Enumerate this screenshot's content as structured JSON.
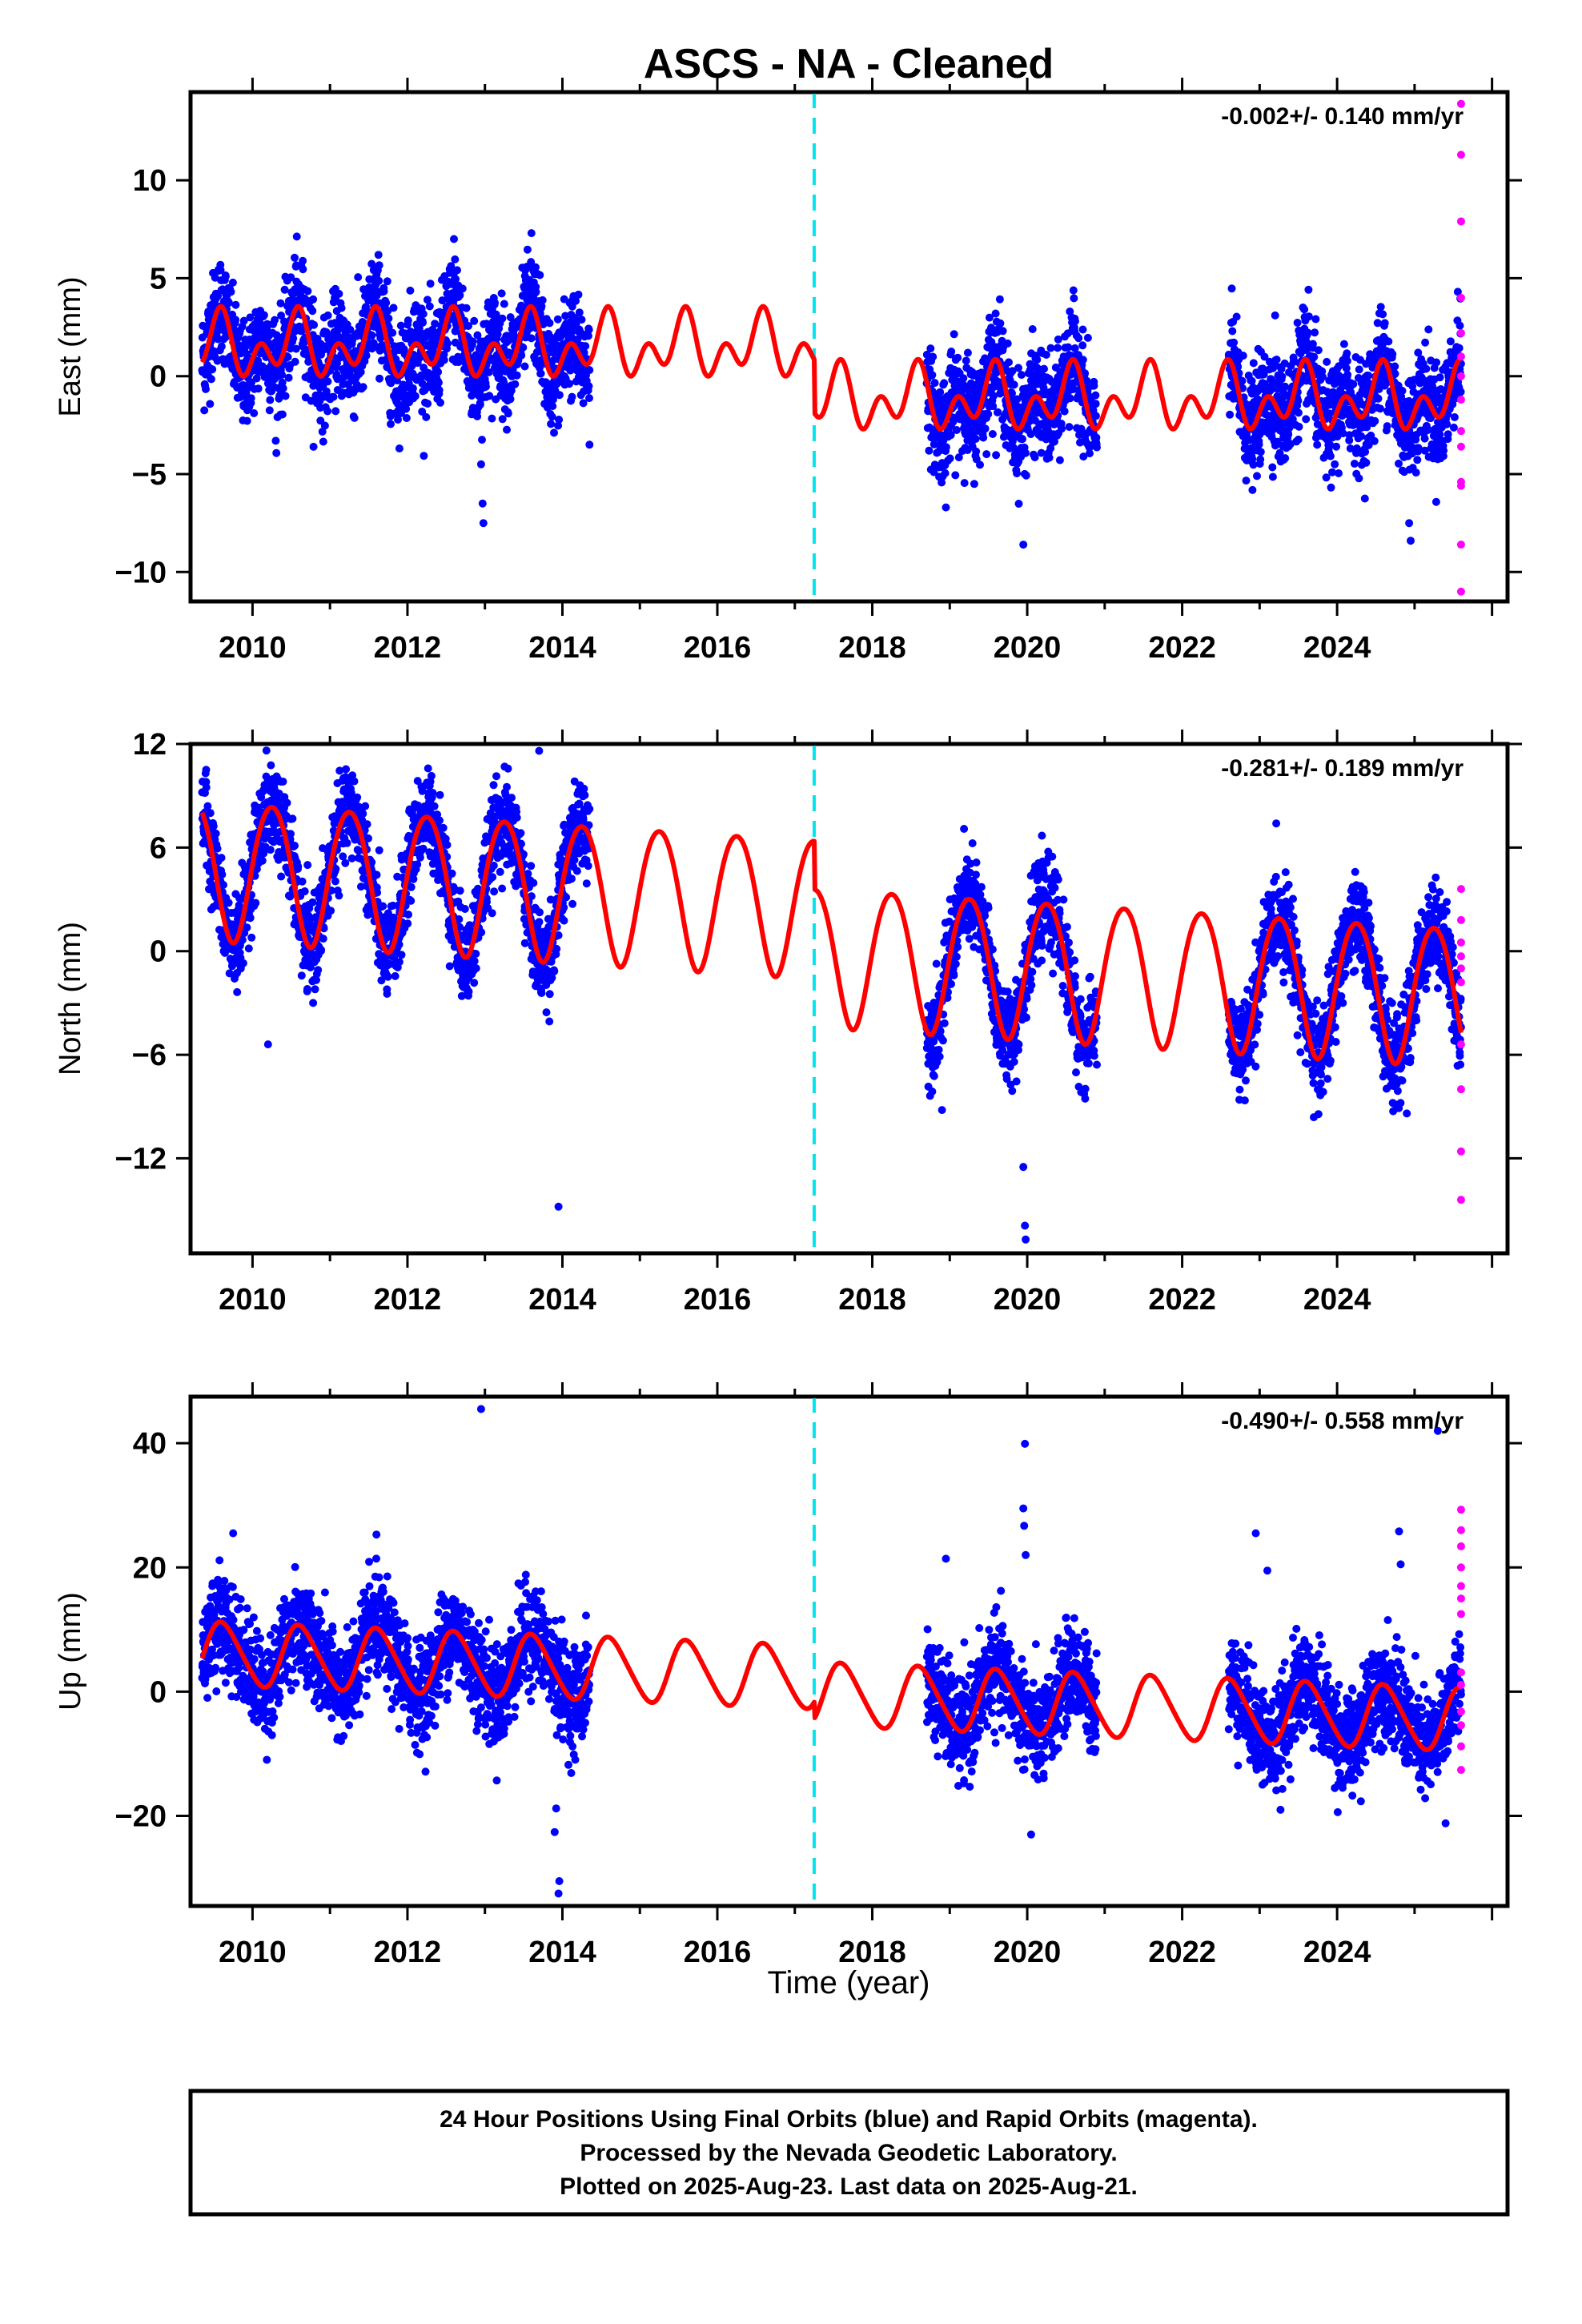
{
  "colors": {
    "final_orbits": "#0000ff",
    "rapid_orbits": "#ff00ff",
    "model": "#ff0000",
    "equipment_change": "#00e5ee",
    "frame": "#000000"
  },
  "chart_data": {
    "type": "scatter",
    "title": "ASCS  - NA - Cleaned",
    "xlabel": "Time (year)",
    "xlim": [
      2009.2,
      2026.2
    ],
    "x_ticks": [
      2010,
      2012,
      2014,
      2016,
      2018,
      2020,
      2022,
      2024
    ],
    "x_tick_labels": [
      "2010",
      "2012",
      "2014",
      "2016",
      "2018",
      "2020",
      "2022",
      "2024"
    ],
    "offset_line_year": 2017.25,
    "data_gap": [
      2014.35,
      2018.7
    ],
    "data_end": 2025.6,
    "panels": [
      {
        "name": "east",
        "ylabel": "East (mm)",
        "ylim": [
          -11.5,
          14.5
        ],
        "y_ticks": [
          -10,
          -5,
          0,
          5,
          10
        ],
        "y_tick_labels": [
          "−10",
          "−5",
          "0",
          "5",
          "10"
        ],
        "rate_label": "-0.002+/- 0.140 mm/yr",
        "model": {
          "segments": [
            {
              "start": 2009.35,
              "end": 2017.25,
              "offset": 1.5
            },
            {
              "start": 2017.25,
              "end": 2025.6,
              "offset": -1.2
            }
          ],
          "annual_amplitude": 1.0,
          "annual_phase": 0.55,
          "semiannual_amplitude": 1.1,
          "semiannual_phase": 0.1
        },
        "scatter_sigma": 1.3,
        "outliers": [
          {
            "x": 2012.6,
            "y": 7.0
          },
          {
            "x": 2013.6,
            "y": 7.3
          },
          {
            "x": 2012.95,
            "y": -4.5
          },
          {
            "x": 2012.97,
            "y": -6.5
          },
          {
            "x": 2012.98,
            "y": -7.5
          },
          {
            "x": 2018.95,
            "y": -6.7
          },
          {
            "x": 2019.95,
            "y": -8.6
          },
          {
            "x": 2020.55,
            "y": 3.3
          },
          {
            "x": 2023.2,
            "y": 3.1
          },
          {
            "x": 2024.93,
            "y": -7.5
          },
          {
            "x": 2024.95,
            "y": -8.4
          },
          {
            "x": 2010.3,
            "y": -3.3
          },
          {
            "x": 2014.35,
            "y": -3.5
          }
        ],
        "rapid_points": [
          {
            "x": 2025.6,
            "y": 13.9
          },
          {
            "x": 2025.6,
            "y": 11.3
          },
          {
            "x": 2025.6,
            "y": 7.9
          },
          {
            "x": 2025.6,
            "y": 4.0
          },
          {
            "x": 2025.6,
            "y": 2.2
          },
          {
            "x": 2025.6,
            "y": 1.0
          },
          {
            "x": 2025.6,
            "y": 0.0
          },
          {
            "x": 2025.6,
            "y": -1.2
          },
          {
            "x": 2025.6,
            "y": -2.8
          },
          {
            "x": 2025.6,
            "y": -3.6
          },
          {
            "x": 2025.6,
            "y": -5.4
          },
          {
            "x": 2025.6,
            "y": -5.6
          },
          {
            "x": 2025.6,
            "y": -8.6
          },
          {
            "x": 2025.6,
            "y": -11.0
          }
        ]
      },
      {
        "name": "north",
        "ylabel": "North (mm)",
        "ylim": [
          -17.5,
          12.0
        ],
        "y_ticks": [
          -12,
          -6,
          0,
          6,
          12
        ],
        "y_tick_labels": [
          "−12",
          "−6",
          "0",
          "6",
          "12"
        ],
        "rate_label": "-0.281+/- 0.189 mm/yr",
        "model": {
          "segments": [
            {
              "start": 2009.35,
              "end": 2017.25,
              "offset": 2.6
            },
            {
              "start": 2017.25,
              "end": 2025.6,
              "offset": -0.2
            }
          ],
          "trend": -0.28,
          "trend_ref": 2017.5,
          "annual_amplitude": 4.0,
          "annual_phase": 0.25,
          "semiannual_amplitude": 0.3,
          "semiannual_phase": 0.0
        },
        "scatter_sigma": 1.3,
        "outliers": [
          {
            "x": 2009.4,
            "y": 9.8
          },
          {
            "x": 2013.7,
            "y": 11.6
          },
          {
            "x": 2013.95,
            "y": -14.8
          },
          {
            "x": 2010.2,
            "y": -5.4
          },
          {
            "x": 2019.95,
            "y": -12.5
          },
          {
            "x": 2019.97,
            "y": -15.9
          },
          {
            "x": 2019.98,
            "y": -16.7
          },
          {
            "x": 2018.9,
            "y": -9.2
          },
          {
            "x": 2024.9,
            "y": -9.4
          }
        ],
        "rapid_points": [
          {
            "x": 2025.6,
            "y": 3.6
          },
          {
            "x": 2025.6,
            "y": 1.8
          },
          {
            "x": 2025.6,
            "y": 0.5
          },
          {
            "x": 2025.6,
            "y": -0.3
          },
          {
            "x": 2025.6,
            "y": -1.0
          },
          {
            "x": 2025.6,
            "y": -1.8
          },
          {
            "x": 2025.6,
            "y": -5.4
          },
          {
            "x": 2025.6,
            "y": -8.0
          },
          {
            "x": 2025.6,
            "y": -11.6
          },
          {
            "x": 2025.6,
            "y": -14.4
          }
        ]
      },
      {
        "name": "up",
        "ylabel": "Up (mm)",
        "ylim": [
          -34.5,
          47.5
        ],
        "y_ticks": [
          -20,
          0,
          20,
          40
        ],
        "y_tick_labels": [
          "−20",
          "0",
          "20",
          "40"
        ],
        "rate_label": "-0.490+/- 0.558 mm/yr",
        "model": {
          "segments": [
            {
              "start": 2009.35,
              "end": 2017.25,
              "offset": 2.2
            },
            {
              "start": 2017.25,
              "end": 2025.6,
              "offset": -0.5
            }
          ],
          "trend": -0.49,
          "trend_ref": 2017.5,
          "annual_amplitude": 5.0,
          "annual_phase": 0.62,
          "semiannual_amplitude": 0.6,
          "semiannual_phase": 0.0
        },
        "scatter_sigma": 4.0,
        "outliers": [
          {
            "x": 2009.75,
            "y": 25.5
          },
          {
            "x": 2011.6,
            "y": 25.3
          },
          {
            "x": 2012.95,
            "y": 45.5
          },
          {
            "x": 2013.95,
            "y": -32.5
          },
          {
            "x": 2013.96,
            "y": -30.5
          },
          {
            "x": 2013.9,
            "y": -22.6
          },
          {
            "x": 2013.92,
            "y": -18.8
          },
          {
            "x": 2018.95,
            "y": 21.4
          },
          {
            "x": 2019.95,
            "y": 29.5
          },
          {
            "x": 2019.96,
            "y": 26.7
          },
          {
            "x": 2019.97,
            "y": 39.9
          },
          {
            "x": 2019.98,
            "y": 22.0
          },
          {
            "x": 2020.05,
            "y": -23.0
          },
          {
            "x": 2022.95,
            "y": 25.5
          },
          {
            "x": 2023.1,
            "y": 19.5
          },
          {
            "x": 2024.8,
            "y": 25.8
          },
          {
            "x": 2024.82,
            "y": 20.5
          },
          {
            "x": 2025.3,
            "y": 42.0
          },
          {
            "x": 2025.4,
            "y": -21.2
          }
        ],
        "rapid_points": [
          {
            "x": 2025.6,
            "y": 29.3
          },
          {
            "x": 2025.6,
            "y": 26.0
          },
          {
            "x": 2025.6,
            "y": 23.4
          },
          {
            "x": 2025.6,
            "y": 20.0
          },
          {
            "x": 2025.6,
            "y": 17.0
          },
          {
            "x": 2025.6,
            "y": 15.0
          },
          {
            "x": 2025.6,
            "y": 12.5
          },
          {
            "x": 2025.6,
            "y": 3.1
          },
          {
            "x": 2025.6,
            "y": 1.1
          },
          {
            "x": 2025.6,
            "y": -3.2
          },
          {
            "x": 2025.6,
            "y": -5.4
          },
          {
            "x": 2025.6,
            "y": -8.8
          },
          {
            "x": 2025.6,
            "y": -12.6
          }
        ]
      }
    ]
  },
  "footer": {
    "line1": "24 Hour Positions Using Final Orbits (blue) and Rapid Orbits (magenta).",
    "line2": "Processed by the Nevada Geodetic Laboratory.",
    "line3": "Plotted on 2025-Aug-23. Last data on 2025-Aug-21."
  }
}
